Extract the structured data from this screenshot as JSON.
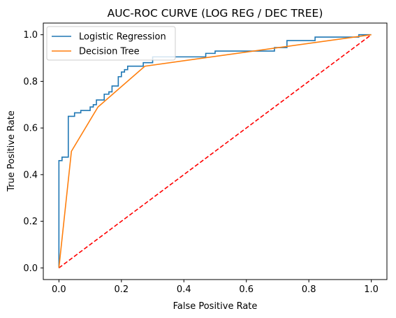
{
  "chart_data": {
    "type": "line",
    "title": "AUC-ROC CURVE (LOG REG / DEC TREE)",
    "xlabel": "False Positive Rate",
    "ylabel": "True Positive Rate",
    "xlim": [
      -0.05,
      1.05
    ],
    "ylim": [
      -0.05,
      1.05
    ],
    "xticks": [
      0.0,
      0.2,
      0.4,
      0.6,
      0.8,
      1.0
    ],
    "yticks": [
      0.0,
      0.2,
      0.4,
      0.6,
      0.8,
      1.0
    ],
    "xtick_labels": [
      "0.0",
      "0.2",
      "0.4",
      "0.6",
      "0.8",
      "1.0"
    ],
    "ytick_labels": [
      "0.0",
      "0.2",
      "0.4",
      "0.6",
      "0.8",
      "1.0"
    ],
    "grid": false,
    "legend_position": "upper-left",
    "series": [
      {
        "name": "Logistic Regression",
        "color": "#1f77b4",
        "style": "step",
        "points": [
          [
            0.0,
            0.0
          ],
          [
            0.0,
            0.46
          ],
          [
            0.01,
            0.46
          ],
          [
            0.01,
            0.475
          ],
          [
            0.03,
            0.475
          ],
          [
            0.03,
            0.65
          ],
          [
            0.05,
            0.65
          ],
          [
            0.05,
            0.665
          ],
          [
            0.07,
            0.665
          ],
          [
            0.07,
            0.675
          ],
          [
            0.1,
            0.675
          ],
          [
            0.1,
            0.69
          ],
          [
            0.11,
            0.69
          ],
          [
            0.11,
            0.7
          ],
          [
            0.12,
            0.7
          ],
          [
            0.12,
            0.72
          ],
          [
            0.145,
            0.72
          ],
          [
            0.145,
            0.745
          ],
          [
            0.16,
            0.745
          ],
          [
            0.16,
            0.755
          ],
          [
            0.17,
            0.755
          ],
          [
            0.17,
            0.78
          ],
          [
            0.19,
            0.78
          ],
          [
            0.19,
            0.82
          ],
          [
            0.2,
            0.82
          ],
          [
            0.2,
            0.84
          ],
          [
            0.21,
            0.84
          ],
          [
            0.21,
            0.85
          ],
          [
            0.22,
            0.85
          ],
          [
            0.22,
            0.865
          ],
          [
            0.27,
            0.865
          ],
          [
            0.27,
            0.88
          ],
          [
            0.3,
            0.88
          ],
          [
            0.3,
            0.905
          ],
          [
            0.47,
            0.905
          ],
          [
            0.47,
            0.92
          ],
          [
            0.5,
            0.92
          ],
          [
            0.5,
            0.93
          ],
          [
            0.69,
            0.93
          ],
          [
            0.69,
            0.945
          ],
          [
            0.73,
            0.945
          ],
          [
            0.73,
            0.975
          ],
          [
            0.82,
            0.975
          ],
          [
            0.82,
            0.99
          ],
          [
            0.96,
            0.99
          ],
          [
            0.96,
            1.0
          ],
          [
            1.0,
            1.0
          ]
        ]
      },
      {
        "name": "Decision Tree",
        "color": "#ff7f0e",
        "style": "line",
        "points": [
          [
            0.0,
            0.0
          ],
          [
            0.04,
            0.5
          ],
          [
            0.125,
            0.69
          ],
          [
            0.275,
            0.865
          ],
          [
            1.0,
            1.0
          ]
        ]
      },
      {
        "color": "#ff0000",
        "style": "dashed",
        "points": [
          [
            0.0,
            0.0
          ],
          [
            1.0,
            1.0
          ]
        ]
      }
    ]
  }
}
